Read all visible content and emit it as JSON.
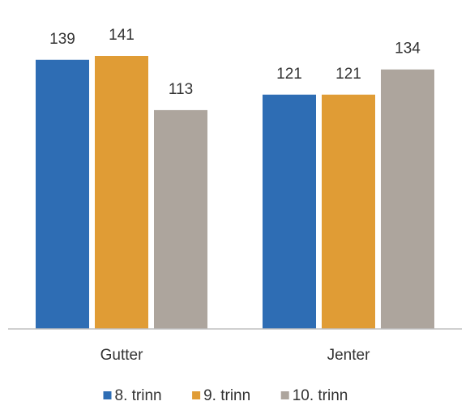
{
  "chart_data": {
    "type": "bar",
    "title": "",
    "xlabel": "",
    "ylabel": "",
    "categories": [
      "Gutter",
      "Jenter"
    ],
    "series": [
      {
        "name": "8. trinn",
        "values": [
          139,
          121
        ],
        "color": "#2e6db4"
      },
      {
        "name": "9. trinn",
        "values": [
          141,
          121
        ],
        "color": "#e09c35"
      },
      {
        "name": "10. trinn",
        "values": [
          113,
          134
        ],
        "color": "#ada59d"
      }
    ],
    "ylim": [
      0,
      141
    ],
    "grid": false,
    "legend_position": "bottom",
    "data_labels": true
  }
}
